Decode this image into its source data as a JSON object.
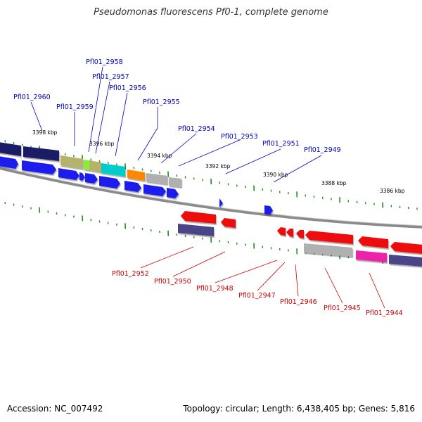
{
  "header": {
    "title": "Pseudomonas fluorescens Pf0-1, complete genome"
  },
  "footer": {
    "accession": "Accession: NC_007492",
    "topology": "Topology: circular; Length: 6,438,405 bp; Genes: 5,816"
  },
  "colors": {
    "forward_label": "#0000bb",
    "reverse_label": "#cc0000",
    "tick": "#228B22",
    "backbone": "#888888"
  },
  "ticks": [
    "3398 kbp",
    "3396 kbp",
    "3394 kbp",
    "3392 kbp",
    "3390 kbp",
    "3388 kbp",
    "3386 kbp"
  ],
  "forward_labels": [
    "Pfl01_2960",
    "Pfl01_2959",
    "Pfl01_2958",
    "Pfl01_2957",
    "Pfl01_2956",
    "Pfl01_2955",
    "Pfl01_2954",
    "Pfl01_2953",
    "Pfl01_2951",
    "Pfl01_2949"
  ],
  "reverse_labels": [
    "Pfl01_2952",
    "Pfl01_2950",
    "Pfl01_2948",
    "Pfl01_2947",
    "Pfl01_2946",
    "Pfl01_2945",
    "Pfl01_2944"
  ]
}
